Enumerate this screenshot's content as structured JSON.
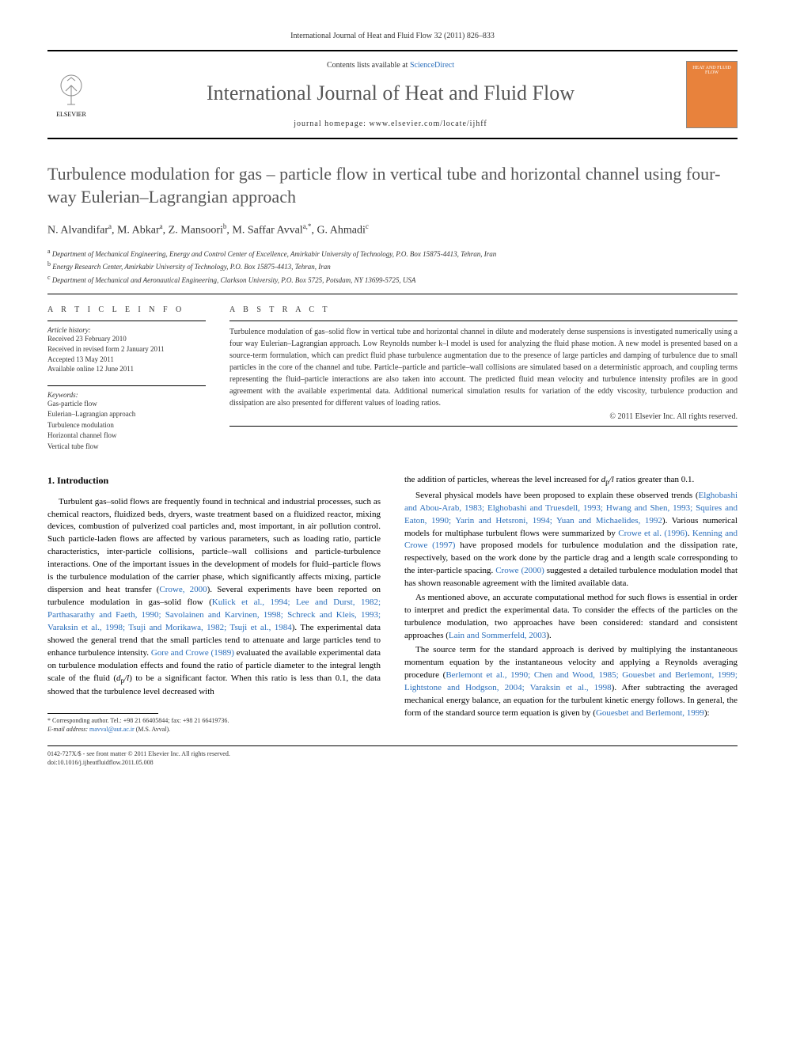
{
  "journal_ref": "International Journal of Heat and Fluid Flow 32 (2011) 826–833",
  "header": {
    "contents_line_prefix": "Contents lists available at ",
    "contents_link": "ScienceDirect",
    "journal_title": "International Journal of Heat and Fluid Flow",
    "homepage_prefix": "journal homepage: ",
    "homepage_url": "www.elsevier.com/locate/ijhff",
    "publisher": "ELSEVIER",
    "cover_text": "HEAT AND FLUID FLOW"
  },
  "article": {
    "title": "Turbulence modulation for gas – particle flow in vertical tube and horizontal channel using four-way Eulerian–Lagrangian approach",
    "authors_html": "N. Alvandifar<sup>a</sup>, M. Abkar<sup>a</sup>, Z. Mansoori<sup>b</sup>, M. Saffar Avval<sup>a,*</sup>, G. Ahmadi<sup>c</sup>",
    "affiliations": [
      {
        "sup": "a",
        "text": "Department of Mechanical Engineering, Energy and Control Center of Excellence, Amirkabir University of Technology, P.O. Box 15875-4413, Tehran, Iran"
      },
      {
        "sup": "b",
        "text": "Energy Research Center, Amirkabir University of Technology, P.O. Box 15875-4413, Tehran, Iran"
      },
      {
        "sup": "c",
        "text": "Department of Mechanical and Aeronautical Engineering, Clarkson University, P.O. Box 5725, Potsdam, NY 13699-5725, USA"
      }
    ]
  },
  "info": {
    "heading": "A R T I C L E   I N F O",
    "history_label": "Article history:",
    "history": [
      "Received 23 February 2010",
      "Received in revised form 2 January 2011",
      "Accepted 13 May 2011",
      "Available online 12 June 2011"
    ],
    "keywords_label": "Keywords:",
    "keywords": [
      "Gas-particle flow",
      "Eulerian–Lagrangian approach",
      "Turbulence modulation",
      "Horizontal channel flow",
      "Vertical tube flow"
    ]
  },
  "abstract": {
    "heading": "A B S T R A C T",
    "text": "Turbulence modulation of gas–solid flow in vertical tube and horizontal channel in dilute and moderately dense suspensions is investigated numerically using a four way Eulerian–Lagrangian approach. Low Reynolds number k–l model is used for analyzing the fluid phase motion. A new model is presented based on a source-term formulation, which can predict fluid phase turbulence augmentation due to the presence of large particles and damping of turbulence due to small particles in the core of the channel and tube. Particle–particle and particle–wall collisions are simulated based on a deterministic approach, and coupling terms representing the fluid–particle interactions are also taken into account. The predicted fluid mean velocity and turbulence intensity profiles are in good agreement with the available experimental data. Additional numerical simulation results for variation of the eddy viscosity, turbulence production and dissipation are also presented for different values of loading ratios.",
    "copyright": "© 2011 Elsevier Inc. All rights reserved."
  },
  "body": {
    "section_heading": "1. Introduction",
    "col1_p1_a": "Turbulent gas–solid flows are frequently found in technical and industrial processes, such as chemical reactors, fluidized beds, dryers, waste treatment based on a fluidized reactor, mixing devices, combustion of pulverized coal particles and, most important, in air pollution control. Such particle-laden flows are affected by various parameters, such as loading ratio, particle characteristics, inter-particle collisions, particle–wall collisions and particle-turbulence interactions. One of the important issues in the development of models for fluid–particle flows is the turbulence modulation of the carrier phase, which significantly affects mixing, particle dispersion and heat transfer (",
    "col1_cite1": "Crowe, 2000",
    "col1_p1_b": "). Several experiments have been reported on turbulence modulation in gas–solid flow (",
    "col1_cite2": "Kulick et al., 1994; Lee and Durst, 1982; Parthasarathy and Faeth, 1990; Savolainen and Karvinen, 1998; Schreck and Kleis, 1993; Varaksin et al., 1998; Tsuji and Morikawa, 1982; Tsuji et al., 1984",
    "col1_p1_c": "). The experimental data showed the general trend that the small particles tend to attenuate and large particles tend to enhance turbulence intensity. ",
    "col1_cite3": "Gore and Crowe (1989)",
    "col1_p1_d": " evaluated the available experimental data on turbulence modulation effects and found the ratio of particle diameter to the integral length scale of the fluid (",
    "col1_ital1": "d",
    "col1_sub1": "p",
    "col1_ital2": "/l",
    "col1_p1_e": ") to be a significant factor. When this ratio is less than 0.1, the data showed that the turbulence level decreased with",
    "col2_p0_a": "the addition of particles, whereas the level increased for ",
    "col2_ital1": "d",
    "col2_sub1": "p",
    "col2_ital2": "/l",
    "col2_p0_b": " ratios greater than 0.1.",
    "col2_p1_a": "Several physical models have been proposed to explain these observed trends (",
    "col2_cite1": "Elghobashi and Abou-Arab, 1983; Elghobashi and Truesdell, 1993; Hwang and Shen, 1993; Squires and Eaton, 1990; Yarin and Hetsroni, 1994; Yuan and Michaelides, 1992",
    "col2_p1_b": "). Various numerical models for multiphase turbulent flows were summarized by ",
    "col2_cite2": "Crowe et al. (1996)",
    "col2_p1_c": ". ",
    "col2_cite3": "Kenning and Crowe (1997)",
    "col2_p1_d": " have proposed models for turbulence modulation and the dissipation rate, respectively, based on the work done by the particle drag and a length scale corresponding to the inter-particle spacing. ",
    "col2_cite4": "Crowe (2000)",
    "col2_p1_e": " suggested a detailed turbulence modulation model that has shown reasonable agreement with the limited available data.",
    "col2_p2_a": "As mentioned above, an accurate computational method for such flows is essential in order to interpret and predict the experimental data. To consider the effects of the particles on the turbulence modulation, two approaches have been considered: standard and consistent approaches (",
    "col2_cite5": "Lain and Sommerfeld, 2003",
    "col2_p2_b": ").",
    "col2_p3_a": "The source term for the standard approach is derived by multiplying the instantaneous momentum equation by the instantaneous velocity and applying a Reynolds averaging procedure (",
    "col2_cite6": "Berlemont et al., 1990; Chen and Wood, 1985; Gouesbet and Berlemont, 1999; Lightstone and Hodgson, 2004; Varaksin et al., 1998",
    "col2_p3_b": "). After subtracting the averaged mechanical energy balance, an equation for the turbulent kinetic energy follows. In general, the form of the standard source term equation is given by (",
    "col2_cite7": "Gouesbet and Berlemont, 1999",
    "col2_p3_c": "):"
  },
  "footnote": {
    "corr_label": "* Corresponding author. Tel.: +98 21 66405844; fax: +98 21 66419736.",
    "email_label": "E-mail address:",
    "email": "mavval@aut.ac.ir",
    "email_of": "(M.S. Avval)."
  },
  "bottom": {
    "line1": "0142-727X/$ - see front matter © 2011 Elsevier Inc. All rights reserved.",
    "line2": "doi:10.1016/j.ijheatfluidflow.2011.05.008"
  },
  "colors": {
    "link": "#2a6ebb",
    "cover_bg": "#e8823c",
    "text": "#333333"
  }
}
